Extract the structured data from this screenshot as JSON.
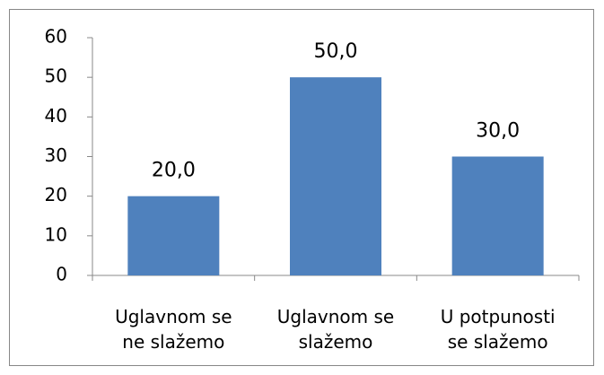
{
  "chart_data": {
    "type": "bar",
    "categories": [
      "Uglavnom se ne slažemo",
      "Uglavnom se slažemo",
      "U potpunosti se slažemo"
    ],
    "values": [
      20,
      50,
      30
    ],
    "value_labels": [
      "20,0",
      "50,0",
      "30,0"
    ],
    "color": "#4f81bd",
    "ylim": [
      0,
      60
    ],
    "yticks": [
      0,
      10,
      20,
      30,
      40,
      50,
      60
    ],
    "grid": false
  }
}
